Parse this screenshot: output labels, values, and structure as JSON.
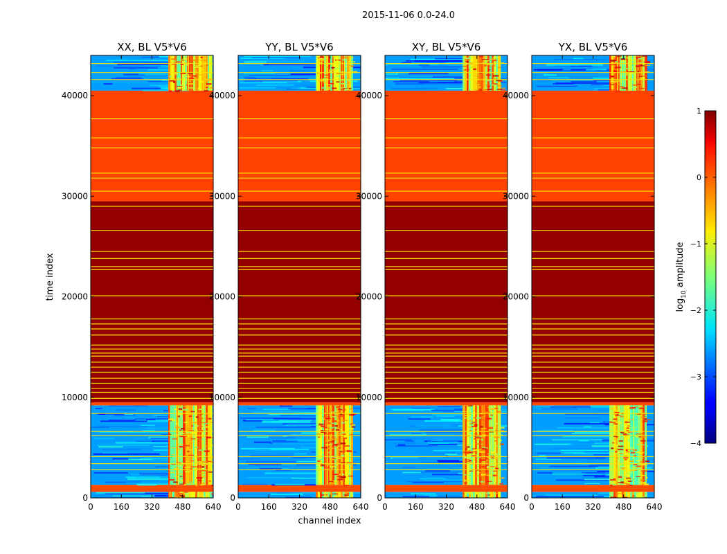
{
  "chart_data": {
    "type": "heatmap",
    "suptitle": "2015-11-06 0.0-24.0",
    "xlabel": "channel index",
    "ylabel": "time index",
    "xlim": [
      0,
      640
    ],
    "ylim": [
      0,
      44000
    ],
    "xticks": [
      "0",
      "160",
      "320",
      "480",
      "640"
    ],
    "yticks": [
      "0",
      "10000",
      "20000",
      "30000",
      "40000"
    ],
    "panels": [
      {
        "title": "XX, BL V5*V6"
      },
      {
        "title": "YY, BL V5*V6"
      },
      {
        "title": "XY, BL V5*V6"
      },
      {
        "title": "YX, BL V5*V6"
      }
    ],
    "colorbar": {
      "label": "log10 amplitude",
      "label_main": "log",
      "label_sub": "10",
      "label_rest": " amplitude",
      "range": [
        -4,
        1
      ],
      "ticks": [
        "1",
        "0",
        "−1",
        "−2",
        "−3",
        "−4"
      ],
      "colormap": "jet"
    },
    "regions": [
      {
        "t0": 0,
        "t1": 600,
        "value": -2.6
      },
      {
        "t0": 600,
        "t1": 1300,
        "value": 0.0
      },
      {
        "t0": 1300,
        "t1": 9200,
        "value": -2.6
      },
      {
        "t0": 9200,
        "t1": 9500,
        "value": 0.0
      },
      {
        "t0": 9500,
        "t1": 29500,
        "value": 0.9
      },
      {
        "t0": 29500,
        "t1": 40500,
        "value": 0.05
      },
      {
        "t0": 40500,
        "t1": 44000,
        "value": -2.6
      }
    ],
    "line_times": [
      2800,
      3400,
      4100,
      6200,
      6600,
      8400,
      9900,
      10500,
      10900,
      11400,
      11900,
      12500,
      13000,
      13500,
      14100,
      14400,
      14800,
      15200,
      16200,
      16800,
      17300,
      17800,
      20100,
      22700,
      23000,
      23800,
      24500,
      26600,
      29000,
      30500,
      31800,
      32300,
      34800,
      35800,
      37700,
      41600,
      42300,
      43200
    ],
    "band_channels": [
      [
        [
          405,
          635
        ]
      ],
      [
        [
          405,
          595
        ]
      ],
      [
        [
          405,
          605
        ]
      ],
      [
        [
          405,
          600
        ]
      ]
    ]
  }
}
